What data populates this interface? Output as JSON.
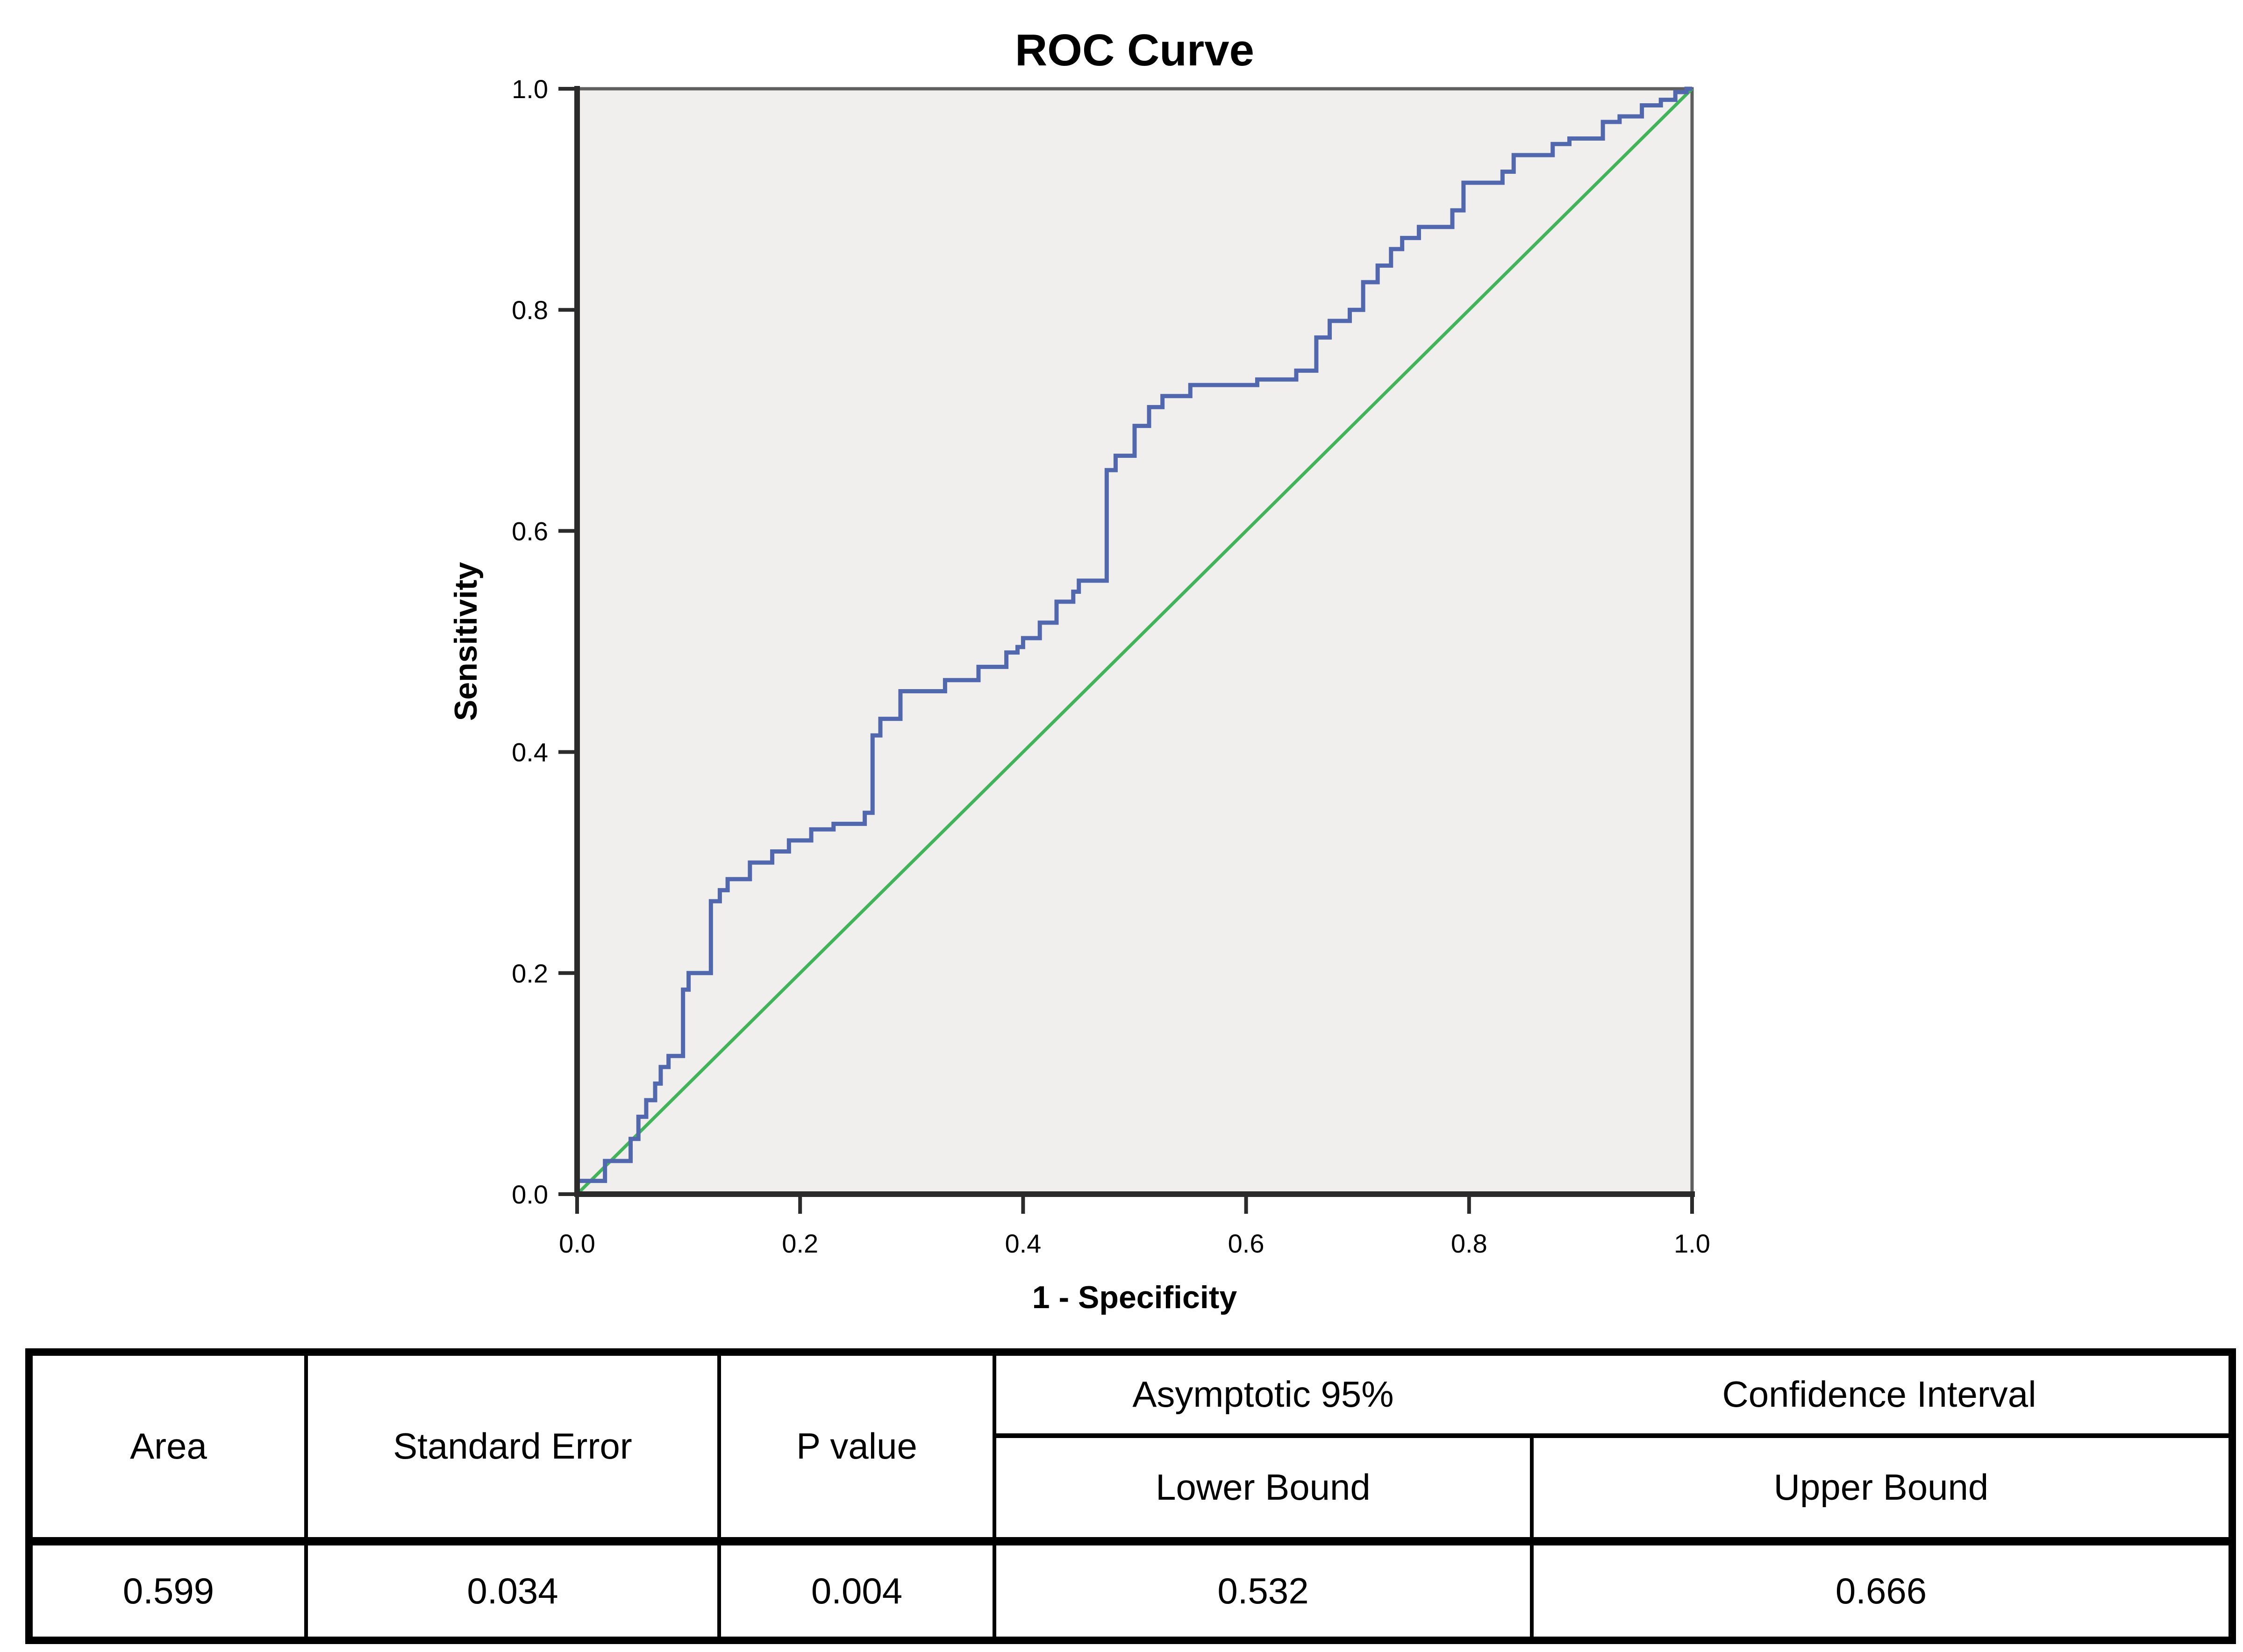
{
  "chart": {
    "title": "ROC Curve",
    "x_axis": {
      "label": "1 - Specificity",
      "ticks": [
        "0.0",
        "0.2",
        "0.4",
        "0.6",
        "0.8",
        "1.0"
      ],
      "range": [
        0,
        1
      ]
    },
    "y_axis": {
      "label": "Sensitivity",
      "ticks": [
        "0.0",
        "0.2",
        "0.4",
        "0.6",
        "0.8",
        "1.0"
      ],
      "range": [
        0,
        1
      ]
    },
    "colors": {
      "roc_line": "#5268ae",
      "reference_line": "#41b45a",
      "plot_background": "#f0efed",
      "frame": "#5f5f5f",
      "axis": "#2b2b2b",
      "text": "#000000"
    }
  },
  "chart_data": {
    "type": "line",
    "title": "ROC Curve",
    "xlabel": "1 - Specificity",
    "ylabel": "Sensitivity",
    "xlim": [
      0,
      1
    ],
    "ylim": [
      0,
      1
    ],
    "grid": false,
    "legend": "none",
    "series": [
      {
        "name": "ROC curve",
        "color": "#5268ae",
        "style": "step",
        "points": [
          [
            0,
            0
          ],
          [
            0,
            0.012
          ],
          [
            0.025,
            0.012
          ],
          [
            0.025,
            0.03
          ],
          [
            0.048,
            0.03
          ],
          [
            0.048,
            0.05
          ],
          [
            0.055,
            0.05
          ],
          [
            0.055,
            0.07
          ],
          [
            0.062,
            0.07
          ],
          [
            0.062,
            0.085
          ],
          [
            0.07,
            0.085
          ],
          [
            0.07,
            0.1
          ],
          [
            0.075,
            0.1
          ],
          [
            0.075,
            0.115
          ],
          [
            0.082,
            0.115
          ],
          [
            0.082,
            0.125
          ],
          [
            0.095,
            0.125
          ],
          [
            0.095,
            0.185
          ],
          [
            0.1,
            0.185
          ],
          [
            0.1,
            0.2
          ],
          [
            0.12,
            0.2
          ],
          [
            0.12,
            0.265
          ],
          [
            0.128,
            0.265
          ],
          [
            0.128,
            0.275
          ],
          [
            0.135,
            0.275
          ],
          [
            0.135,
            0.285
          ],
          [
            0.155,
            0.285
          ],
          [
            0.155,
            0.3
          ],
          [
            0.175,
            0.3
          ],
          [
            0.175,
            0.31
          ],
          [
            0.19,
            0.31
          ],
          [
            0.19,
            0.32
          ],
          [
            0.21,
            0.32
          ],
          [
            0.21,
            0.33
          ],
          [
            0.23,
            0.33
          ],
          [
            0.23,
            0.335
          ],
          [
            0.258,
            0.335
          ],
          [
            0.258,
            0.345
          ],
          [
            0.265,
            0.345
          ],
          [
            0.265,
            0.415
          ],
          [
            0.272,
            0.415
          ],
          [
            0.272,
            0.43
          ],
          [
            0.29,
            0.43
          ],
          [
            0.29,
            0.455
          ],
          [
            0.33,
            0.455
          ],
          [
            0.33,
            0.465
          ],
          [
            0.36,
            0.465
          ],
          [
            0.36,
            0.477
          ],
          [
            0.385,
            0.477
          ],
          [
            0.385,
            0.49
          ],
          [
            0.395,
            0.49
          ],
          [
            0.395,
            0.495
          ],
          [
            0.4,
            0.495
          ],
          [
            0.4,
            0.503
          ],
          [
            0.415,
            0.503
          ],
          [
            0.415,
            0.517
          ],
          [
            0.43,
            0.517
          ],
          [
            0.43,
            0.536
          ],
          [
            0.445,
            0.536
          ],
          [
            0.445,
            0.545
          ],
          [
            0.45,
            0.545
          ],
          [
            0.45,
            0.555
          ],
          [
            0.475,
            0.555
          ],
          [
            0.475,
            0.655
          ],
          [
            0.483,
            0.655
          ],
          [
            0.483,
            0.668
          ],
          [
            0.5,
            0.668
          ],
          [
            0.5,
            0.695
          ],
          [
            0.513,
            0.695
          ],
          [
            0.513,
            0.712
          ],
          [
            0.525,
            0.712
          ],
          [
            0.525,
            0.722
          ],
          [
            0.55,
            0.722
          ],
          [
            0.55,
            0.732
          ],
          [
            0.61,
            0.732
          ],
          [
            0.61,
            0.737
          ],
          [
            0.645,
            0.737
          ],
          [
            0.645,
            0.745
          ],
          [
            0.663,
            0.745
          ],
          [
            0.663,
            0.775
          ],
          [
            0.675,
            0.775
          ],
          [
            0.675,
            0.79
          ],
          [
            0.693,
            0.79
          ],
          [
            0.693,
            0.8
          ],
          [
            0.705,
            0.8
          ],
          [
            0.705,
            0.825
          ],
          [
            0.718,
            0.825
          ],
          [
            0.718,
            0.84
          ],
          [
            0.73,
            0.84
          ],
          [
            0.73,
            0.855
          ],
          [
            0.74,
            0.855
          ],
          [
            0.74,
            0.865
          ],
          [
            0.755,
            0.865
          ],
          [
            0.755,
            0.875
          ],
          [
            0.785,
            0.875
          ],
          [
            0.785,
            0.89
          ],
          [
            0.795,
            0.89
          ],
          [
            0.795,
            0.915
          ],
          [
            0.83,
            0.915
          ],
          [
            0.83,
            0.925
          ],
          [
            0.84,
            0.925
          ],
          [
            0.84,
            0.94
          ],
          [
            0.875,
            0.94
          ],
          [
            0.875,
            0.95
          ],
          [
            0.89,
            0.95
          ],
          [
            0.89,
            0.955
          ],
          [
            0.92,
            0.955
          ],
          [
            0.92,
            0.97
          ],
          [
            0.935,
            0.97
          ],
          [
            0.935,
            0.975
          ],
          [
            0.955,
            0.975
          ],
          [
            0.955,
            0.985
          ],
          [
            0.972,
            0.985
          ],
          [
            0.972,
            0.99
          ],
          [
            0.985,
            0.99
          ],
          [
            0.985,
            0.997
          ],
          [
            0.995,
            0.997
          ],
          [
            0.995,
            1
          ],
          [
            1,
            1
          ]
        ]
      },
      {
        "name": "Reference line",
        "color": "#41b45a",
        "style": "line",
        "points": [
          [
            0,
            0
          ],
          [
            1,
            1
          ]
        ]
      }
    ]
  },
  "table": {
    "header": {
      "area": "Area",
      "standard_error": "Standard Error",
      "p_value": "P value",
      "ci_title_left": "Asymptotic 95%",
      "ci_title_right": "Confidence Interval",
      "lower_bound": "Lower Bound",
      "upper_bound": "Upper Bound"
    },
    "values": {
      "area": "0.599",
      "standard_error": "0.034",
      "p_value": "0.004",
      "lower_bound": "0.532",
      "upper_bound": "0.666"
    }
  }
}
